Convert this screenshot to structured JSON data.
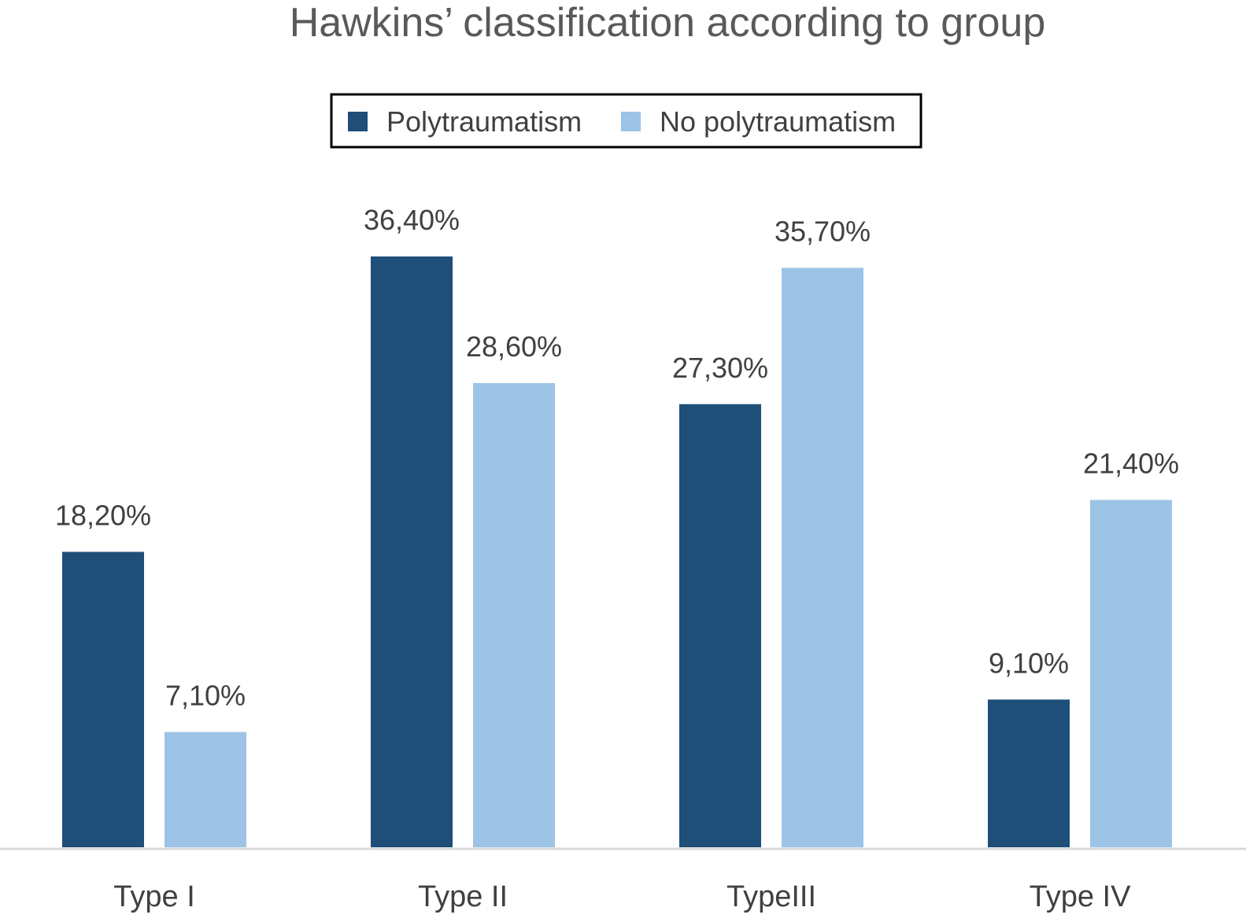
{
  "chart_data": {
    "type": "bar",
    "title": "Hawkins’ classification according to group",
    "xlabel": "",
    "ylabel": "",
    "categories": [
      "Type I",
      "Type II",
      "TypeIII",
      "Type IV"
    ],
    "series": [
      {
        "name": "Polytraumatism",
        "color": "#1f4e79",
        "values": [
          18.2,
          36.4,
          27.3,
          9.1
        ],
        "labels": [
          "18,20%",
          "36,40%",
          "27,30%",
          "9,10%"
        ]
      },
      {
        "name": "No polytraumatism",
        "color": "#9dc3e6",
        "values": [
          7.1,
          28.6,
          35.7,
          21.4
        ],
        "labels": [
          "7,10%",
          "28,60%",
          "35,70%",
          "21,40%"
        ]
      }
    ],
    "ylim": [
      0,
      36.4
    ],
    "grid": false,
    "legend_position": "top-center",
    "axis_color": "#d9d9d9"
  }
}
